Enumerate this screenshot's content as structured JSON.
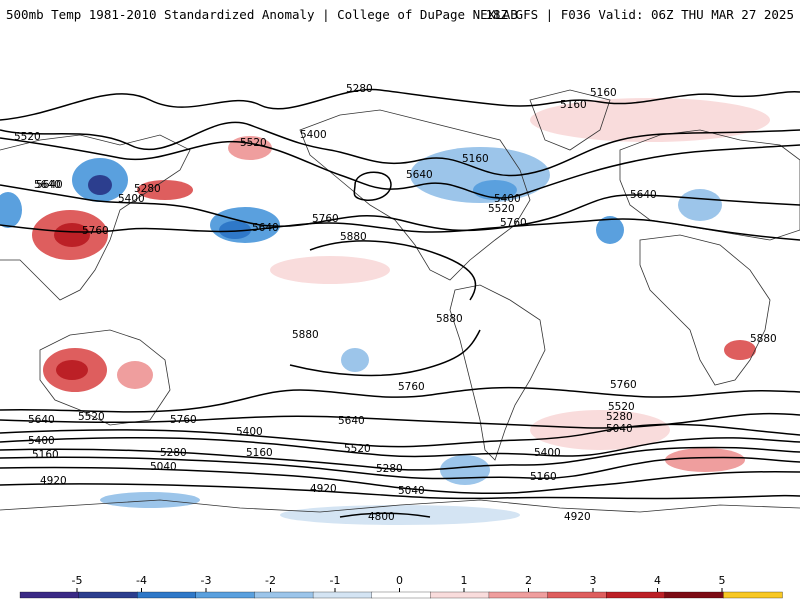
{
  "header": {
    "left_title": "500mb Temp 1981-2010 Standardized Anomaly | College of DuPage NEXLAB",
    "right_title": "18Z GFS | F036 Valid: 06Z THU MAR 27 2025"
  },
  "map": {
    "projection": "equirectangular-global",
    "contour_labels": [
      "5280",
      "5160",
      "5160",
      "5520",
      "5400",
      "5520",
      "5640",
      "5280",
      "5400",
      "5640",
      "5160",
      "5640",
      "5400",
      "5520",
      "5760",
      "5640",
      "5760",
      "5640",
      "5760",
      "5880",
      "5880",
      "5880",
      "5880",
      "5760",
      "5760",
      "5640",
      "5760",
      "5640",
      "5520",
      "5520",
      "5400",
      "5520",
      "5400",
      "5280",
      "5280",
      "5160",
      "5400",
      "5160",
      "5160",
      "5040",
      "5280",
      "5040",
      "4920",
      "4920",
      "5040",
      "4920",
      "4800"
    ],
    "anomaly_patches": [
      {
        "sign": "warm",
        "level": 3,
        "region": "eastern-china"
      },
      {
        "sign": "warm",
        "level": 3,
        "region": "western-australia"
      },
      {
        "sign": "warm",
        "level": 2,
        "region": "northern-australia"
      },
      {
        "sign": "cold",
        "level": 3,
        "region": "north-pacific"
      },
      {
        "sign": "cold",
        "level": 2,
        "region": "northeast-asia"
      },
      {
        "sign": "cold",
        "level": 2,
        "region": "hudson-bay"
      },
      {
        "sign": "warm",
        "level": 3,
        "region": "southern-africa"
      }
    ]
  },
  "colorbar": {
    "ticks": [
      "-5",
      "-4",
      "-3",
      "-2",
      "-1",
      "0",
      "1",
      "2",
      "3",
      "4",
      "5"
    ],
    "colors": [
      "#3a2a85",
      "#2c3e8e",
      "#2f78c8",
      "#5aa0de",
      "#9cc5ea",
      "#d4e4f3",
      "#ffffff",
      "#f9dcdc",
      "#ef9e9e",
      "#de5e5e",
      "#bc2026",
      "#7c0c14",
      "#f8c824"
    ]
  }
}
